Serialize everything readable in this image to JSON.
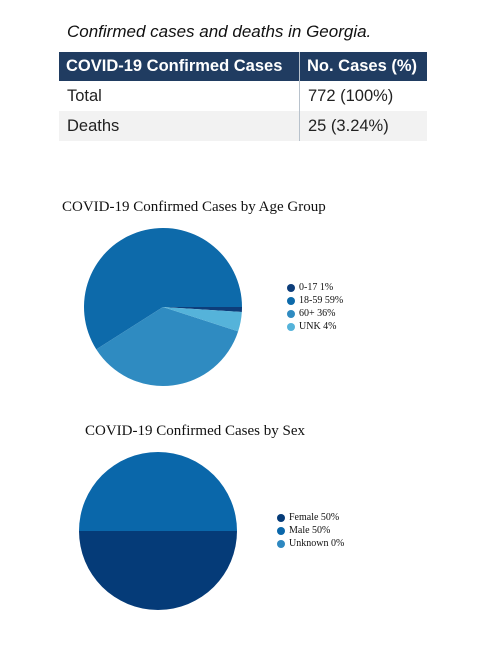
{
  "caption": "Confirmed cases and deaths in Georgia.",
  "table": {
    "headers": [
      "COVID-19 Confirmed Cases",
      "No. Cases (%)"
    ],
    "rows": [
      {
        "label": "Total",
        "value": "772 (100%)"
      },
      {
        "label": "Deaths",
        "value": "25 (3.24%)"
      }
    ],
    "header_color": "#203c61"
  },
  "chart_data": [
    {
      "type": "pie",
      "title": "COVID-19 Confirmed Cases by Age Group",
      "legend_position": "right",
      "slices": [
        {
          "label": "0-17",
          "legend": "0-17 1%",
          "value": 1,
          "color": "#0d3d7a"
        },
        {
          "label": "18-59",
          "legend": "18-59 59%",
          "value": 59,
          "color": "#0d6aaa"
        },
        {
          "label": "60+",
          "legend": "60+ 36%",
          "value": 36,
          "color": "#2f8bc1"
        },
        {
          "label": "UNK",
          "legend": "UNK 4%",
          "value": 4,
          "color": "#55b3da"
        }
      ]
    },
    {
      "type": "pie",
      "title": "COVID-19 Confirmed Cases by Sex",
      "legend_position": "right",
      "slices": [
        {
          "label": "Female",
          "legend": "Female 50%",
          "value": 50,
          "color": "#053b78"
        },
        {
          "label": "Male",
          "legend": "Male 50%",
          "value": 50,
          "color": "#0a67aa"
        },
        {
          "label": "Unknown",
          "legend": "Unknown 0%",
          "value": 0,
          "color": "#2e88c0"
        }
      ]
    }
  ]
}
